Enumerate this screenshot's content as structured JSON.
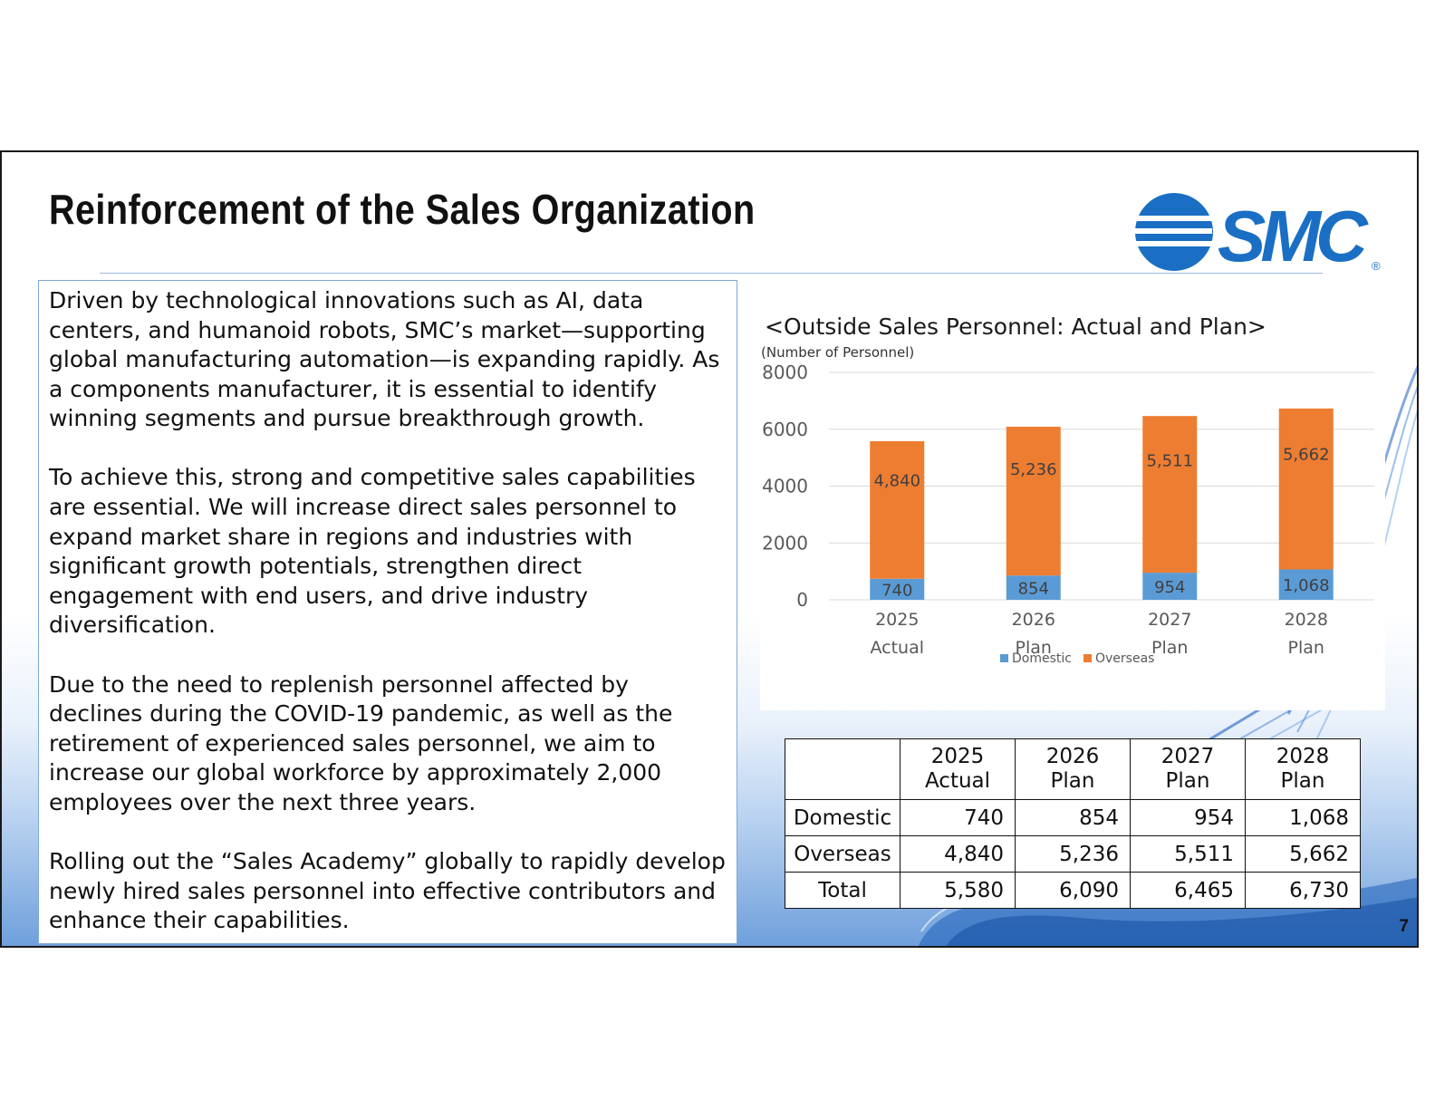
{
  "slide": {
    "title": "Reinforcement of the Sales Organization",
    "page_number": "7",
    "logo": {
      "text": "SMC",
      "registered_mark": "®",
      "color": "#1a6fc4"
    }
  },
  "body_text": {
    "paragraphs": [
      "Driven by technological innovations such as AI, data centers, and humanoid robots, SMC’s market—supporting global manufacturing automation—is expanding rapidly. As a components manufacturer, it is essential to identify winning segments and pursue breakthrough growth.",
      "To achieve this, strong and competitive sales capabilities are essential. We will increase direct sales personnel to expand market share in regions and industries with significant growth potentials, strengthen direct engagement with end users, and drive industry diversification.",
      "Due to the need to replenish personnel affected by declines during the COVID-19 pandemic, as well as the retirement of experienced sales personnel, we aim to increase our global workforce by approximately 2,000 employees over the next three years.",
      "Rolling out the “Sales Academy” globally to rapidly develop newly hired sales personnel into effective contributors and enhance their capabilities."
    ]
  },
  "chart_data": {
    "type": "bar",
    "stacked": true,
    "title": "<Outside Sales Personnel:  Actual and Plan>",
    "ylabel": "(Number of Personnel)",
    "ylim": [
      0,
      8000
    ],
    "yticks": [
      0,
      2000,
      4000,
      6000,
      8000
    ],
    "grid": true,
    "legend_position": "bottom",
    "categories": [
      [
        "2025",
        "Actual"
      ],
      [
        "2026",
        "Plan"
      ],
      [
        "2027",
        "Plan"
      ],
      [
        "2028",
        "Plan"
      ]
    ],
    "series": [
      {
        "name": "Domestic",
        "values": [
          740,
          854,
          954,
          1068
        ],
        "labels": [
          "740",
          "854",
          "954",
          "1,068"
        ],
        "color": "#5b9bd5"
      },
      {
        "name": "Overseas",
        "values": [
          4840,
          5236,
          5511,
          5662
        ],
        "labels": [
          "4,840",
          "5,236",
          "5,511",
          "5,662"
        ],
        "color": "#ed7d31"
      }
    ]
  },
  "table": {
    "columns": [
      [
        "2025",
        "Actual"
      ],
      [
        "2026",
        "Plan"
      ],
      [
        "2027",
        "Plan"
      ],
      [
        "2028",
        "Plan"
      ]
    ],
    "rows": [
      {
        "label": "Domestic",
        "values": [
          "740",
          "854",
          "954",
          "1,068"
        ]
      },
      {
        "label": "Overseas",
        "values": [
          "4,840",
          "5,236",
          "5,511",
          "5,662"
        ]
      },
      {
        "label": "Total",
        "values": [
          "5,580",
          "6,090",
          "6,465",
          "6,730"
        ]
      }
    ]
  }
}
